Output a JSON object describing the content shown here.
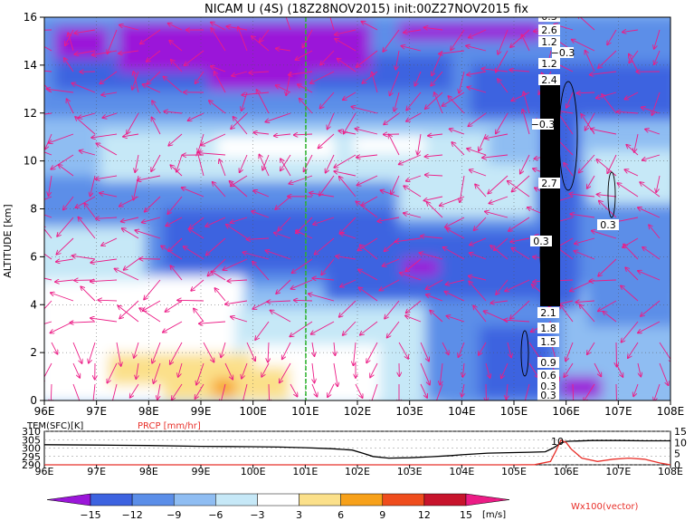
{
  "title": "NICAM U (4S) (18Z28NOV2015) init:00Z27NOV2015 fix",
  "chart_data": [
    {
      "type": "heatmap",
      "title": "NICAM U (4S) (18Z28NOV2015) init:00Z27NOV2015 fix",
      "ylabel": "ALTITUDE [km]",
      "xlabel": "",
      "x_ticks": [
        "96E",
        "97E",
        "98E",
        "99E",
        "100E",
        "101E",
        "102E",
        "103E",
        "104E",
        "105E",
        "106E",
        "107E",
        "108E"
      ],
      "y_ticks": [
        "0",
        "2",
        "4",
        "6",
        "8",
        "10",
        "12",
        "14",
        "16"
      ],
      "xlim": [
        96,
        108
      ],
      "ylim": [
        0,
        16
      ],
      "unit": "[m/s]",
      "colorbar_ticks": [
        "−15",
        "−12",
        "−9",
        "−6",
        "−3",
        "3",
        "6",
        "9",
        "12",
        "15"
      ],
      "colorbar_colors": [
        "#9b16d9",
        "#3d63e0",
        "#5b8ee8",
        "#8fbdf2",
        "#c6e8f7",
        "#ffffff",
        "#fbe08a",
        "#f7a11a",
        "#ef4d1d",
        "#c7142c",
        "#ec1c86"
      ],
      "vector_label": "Wx100(vector)",
      "vector_color": "#ec1c86",
      "contour_labels": [
        "0.3",
        "2.6",
        "1.2",
        "−0.3",
        "1.2",
        "2.4",
        "−0.3",
        "2.7",
        "0.3",
        "0.3",
        "2.1",
        "1.8",
        "1.5",
        "0.9",
        "0.6",
        "0.3",
        "0.3"
      ],
      "marker_line_x": 101,
      "grid": true
    },
    {
      "type": "line",
      "x_ticks": [
        "96E",
        "97E",
        "98E",
        "99E",
        "100E",
        "101E",
        "102E",
        "103E",
        "104E",
        "105E",
        "106E",
        "107E",
        "108E"
      ],
      "xlim": [
        96,
        108
      ],
      "series": [
        {
          "name": "TEM(SFC)[K]",
          "color": "#000000",
          "x": [
            96,
            97,
            98,
            99,
            100,
            100.5,
            101,
            101.5,
            101.9,
            102.1,
            102.3,
            102.6,
            103,
            103.4,
            103.8,
            104,
            104.5,
            105,
            105.3,
            105.6,
            105.75,
            105.9,
            106,
            106.5,
            107,
            107.5,
            108
          ],
          "y": [
            302,
            301.8,
            301.5,
            301,
            300.8,
            300.6,
            300.2,
            299.6,
            298.8,
            297,
            295,
            294,
            294.2,
            294.8,
            295.5,
            296,
            297,
            297.3,
            297.5,
            297.8,
            300,
            303,
            304,
            304.5,
            304.5,
            304.3,
            304.3
          ]
        },
        {
          "name": "PRCP [mm/hr]",
          "color": "#e8302a",
          "x": [
            96,
            100,
            101,
            104,
            105,
            105.4,
            105.7,
            105.8,
            105.9,
            106,
            106.1,
            106.3,
            106.6,
            106.9,
            107.2,
            107.5,
            107.8,
            108
          ],
          "y": [
            0,
            0,
            0,
            0,
            0,
            0.1,
            1.5,
            6,
            11,
            10,
            7,
            3,
            1.5,
            2.5,
            3,
            2.5,
            0.8,
            0
          ]
        }
      ],
      "left_ticks": [
        "290",
        "295",
        "300",
        "305",
        "310"
      ],
      "left_range": [
        290,
        310
      ],
      "right_ticks": [
        "0",
        "5",
        "10",
        "15"
      ],
      "right_range": [
        0,
        15
      ],
      "annotation": "10"
    }
  ]
}
